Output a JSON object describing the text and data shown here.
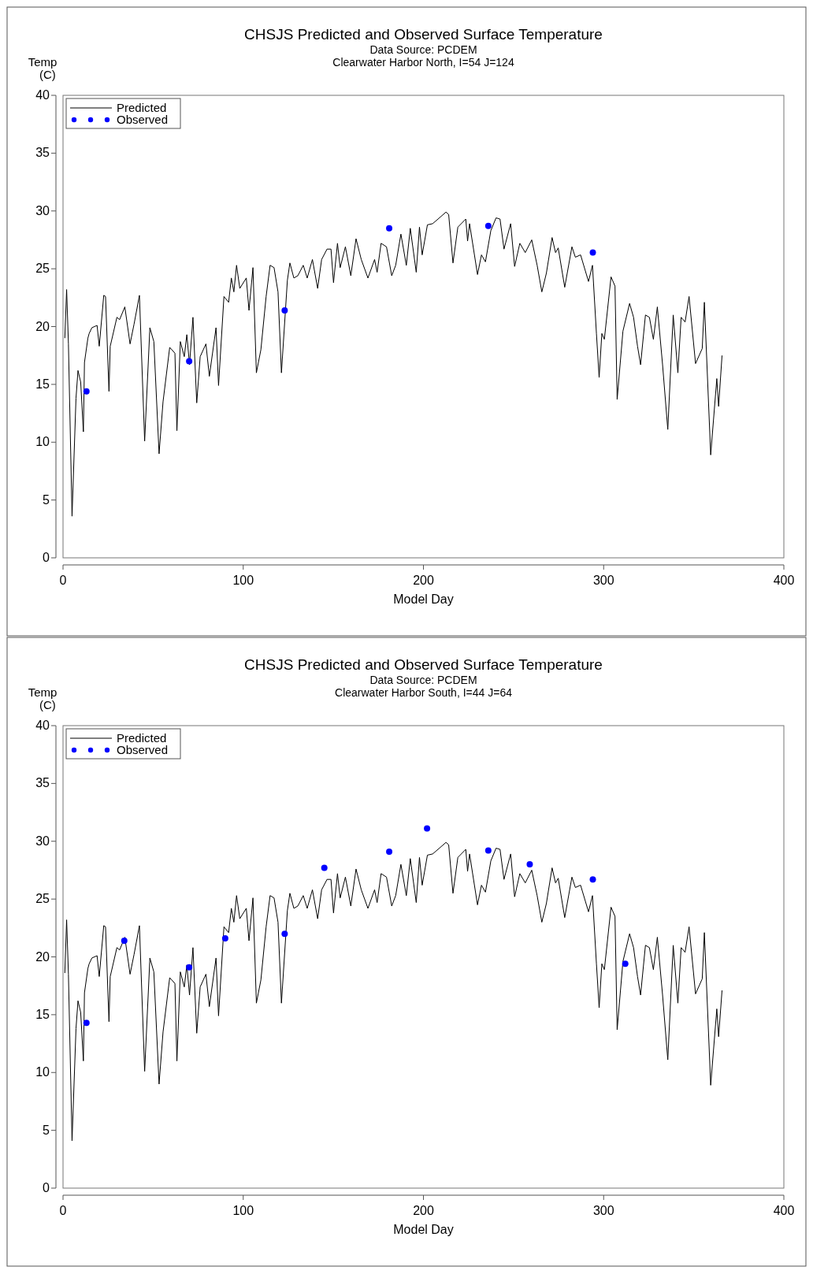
{
  "chart_data": [
    {
      "type": "line",
      "title": "CHSJS Predicted and Observed Surface Temperature",
      "subtitle": "Data Source: PCDEM\nClearwater Harbor North, I=54 J=124",
      "xlabel": "Model Day",
      "ylabel": "Temp\n(C)",
      "xlim": [
        0,
        400
      ],
      "ylim": [
        0,
        40
      ],
      "xticks": [
        0,
        100,
        200,
        300,
        400
      ],
      "yticks": [
        0,
        5,
        10,
        15,
        20,
        25,
        30,
        35,
        40
      ],
      "grid": false,
      "legend": "top left",
      "series": [
        {
          "name": "Predicted",
          "color": "#000000",
          "marker": "none",
          "x": [
            1,
            2,
            3,
            5,
            7.2,
            8.3,
            9.8,
            11.3,
            11.9,
            13.8,
            14.5,
            16,
            18.9,
            20.1,
            22.6,
            23.6,
            25.5,
            26.2,
            29.9,
            31.4,
            34.3,
            37.2,
            39.4,
            42.4,
            45.3,
            48.2,
            50.4,
            53.3,
            55.5,
            59.2,
            62.1,
            63.2,
            65.1,
            67.3,
            68.7,
            70.2,
            72.1,
            74.2,
            76.1,
            79.3,
            81.2,
            84.9,
            86.3,
            89.3,
            91.9,
            93.4,
            94.8,
            96.3,
            98.1,
            101.7,
            103.2,
            105.4,
            107.3,
            109.8,
            112.7,
            114.9,
            117.1,
            119.3,
            121.2,
            124.5,
            125.9,
            128.1,
            130.3,
            133.3,
            135.5,
            138.4,
            141.3,
            143.5,
            146.5,
            148.7,
            150.1,
            152.3,
            153.8,
            156.7,
            159.7,
            162.6,
            165.5,
            169.2,
            172.9,
            174.3,
            176.5,
            179.5,
            182.4,
            184.6,
            187.5,
            190.5,
            192.7,
            196,
            197.8,
            199.3,
            202.2,
            205.1,
            208.1,
            212.5,
            214,
            216.4,
            219.1,
            223.5,
            224.5,
            225.6,
            230,
            232.2,
            234.4,
            237.4,
            240.3,
            242.5,
            244.7,
            248.4,
            250.6,
            253.5,
            256.5,
            260.1,
            263.1,
            265.7,
            268.2,
            271.4,
            273.3,
            274.8,
            278.4,
            282.4,
            284.3,
            287.2,
            291.6,
            293.8,
            296,
            297.5,
            299,
            300.4,
            304.1,
            306.3,
            307.5,
            310.7,
            314.4,
            316.6,
            318.8,
            320.5,
            323.2,
            325.4,
            327.6,
            329.8,
            332.7,
            335.6,
            338.6,
            341.2,
            343,
            345.2,
            347.4,
            351,
            354.7,
            355.9,
            359.4,
            362.8,
            363.8,
            365.7
          ],
          "values": [
            19.0,
            23.2,
            18.5,
            3.6,
            13.8,
            16.2,
            15.2,
            10.9,
            16.9,
            19.0,
            19.4,
            19.9,
            20.1,
            18.3,
            22.7,
            22.6,
            14.4,
            18.3,
            20.8,
            20.6,
            21.7,
            18.5,
            20.2,
            22.7,
            10.1,
            19.9,
            18.7,
            9.0,
            13.5,
            18.2,
            17.7,
            11.0,
            18.7,
            17.4,
            19.3,
            16.7,
            20.8,
            13.4,
            17.4,
            18.5,
            15.7,
            19.9,
            14.9,
            22.6,
            22.1,
            24.2,
            23.0,
            25.3,
            23.3,
            24.2,
            21.4,
            25.1,
            16.0,
            18.0,
            22.6,
            25.3,
            25.1,
            23.0,
            16.0,
            24.0,
            25.5,
            24.2,
            24.4,
            25.3,
            24.2,
            25.8,
            23.3,
            25.8,
            26.7,
            26.7,
            23.8,
            27.2,
            25.1,
            26.9,
            24.4,
            27.6,
            25.8,
            24.2,
            25.8,
            24.7,
            27.2,
            26.9,
            24.4,
            25.3,
            28.0,
            25.3,
            28.5,
            24.7,
            28.6,
            26.2,
            28.8,
            28.9,
            29.3,
            29.9,
            29.7,
            25.5,
            28.6,
            29.3,
            27.4,
            28.9,
            24.5,
            26.2,
            25.6,
            28.3,
            29.4,
            29.3,
            26.7,
            28.9,
            25.2,
            27.2,
            26.4,
            27.5,
            25.3,
            23.0,
            24.6,
            27.7,
            26.4,
            26.8,
            23.4,
            26.9,
            26.0,
            26.2,
            23.9,
            25.3,
            19.4,
            15.6,
            19.4,
            18.9,
            24.3,
            23.5,
            13.7,
            19.6,
            22.0,
            20.8,
            18.3,
            16.7,
            21.0,
            20.8,
            18.9,
            21.7,
            16.7,
            11.1,
            21.0,
            16.0,
            20.8,
            20.4,
            22.6,
            16.8,
            18.1,
            22.1,
            8.9,
            15.5,
            13.1,
            17.5
          ]
        },
        {
          "name": "Observed",
          "type": "scatter",
          "color": "#0000ff",
          "marker": "circle",
          "x": [
            13,
            70,
            123,
            181,
            236,
            294
          ],
          "values": [
            14.4,
            17.0,
            21.4,
            28.5,
            28.7,
            26.4
          ]
        }
      ]
    },
    {
      "type": "line",
      "title": "CHSJS Predicted and Observed Surface Temperature",
      "subtitle": "Data Source: PCDEM\nClearwater Harbor South, I=44 J=64",
      "xlabel": "Model Day",
      "ylabel": "Temp\n(C)",
      "xlim": [
        0,
        400
      ],
      "ylim": [
        0,
        40
      ],
      "xticks": [
        0,
        100,
        200,
        300,
        400
      ],
      "yticks": [
        0,
        5,
        10,
        15,
        20,
        25,
        30,
        35,
        40
      ],
      "grid": false,
      "legend": "top left",
      "series": [
        {
          "name": "Predicted",
          "color": "#000000",
          "marker": "none",
          "x": [
            1,
            2,
            3,
            5,
            7.2,
            8.3,
            9.8,
            11.3,
            11.9,
            13.8,
            14.5,
            16,
            18.9,
            20.1,
            22.6,
            23.6,
            25.5,
            26.2,
            29.9,
            31.4,
            34.3,
            37.2,
            39.4,
            42.4,
            45.3,
            48.2,
            50.4,
            53.3,
            55.5,
            59.2,
            62.1,
            63.2,
            65.1,
            67.3,
            68.7,
            70.2,
            72.1,
            74.2,
            76.1,
            79.3,
            81.2,
            84.9,
            86.3,
            89.3,
            91.9,
            93.4,
            94.8,
            96.3,
            98.1,
            101.7,
            103.2,
            105.4,
            107.3,
            109.8,
            112.7,
            114.9,
            117.1,
            119.3,
            121.2,
            124.5,
            125.9,
            128.1,
            130.3,
            133.3,
            135.5,
            138.4,
            141.3,
            143.5,
            146.5,
            148.7,
            150.1,
            152.3,
            153.8,
            156.7,
            159.7,
            162.6,
            165.5,
            169.2,
            172.9,
            174.3,
            176.5,
            179.5,
            182.4,
            184.6,
            187.5,
            190.5,
            192.7,
            196,
            197.8,
            199.3,
            202.2,
            205.1,
            208.1,
            212.5,
            214,
            216.4,
            219.1,
            223.5,
            224.5,
            225.6,
            230,
            232.2,
            234.4,
            237.4,
            240.3,
            242.5,
            244.7,
            248.4,
            250.6,
            253.5,
            256.5,
            260.1,
            263.1,
            265.7,
            268.2,
            271.4,
            273.3,
            274.8,
            278.4,
            282.4,
            284.3,
            287.2,
            291.6,
            293.8,
            296,
            297.5,
            299,
            300.4,
            304.1,
            306.3,
            307.5,
            310.7,
            314.4,
            316.6,
            318.8,
            320.5,
            323.2,
            325.4,
            327.6,
            329.8,
            332.7,
            335.6,
            338.6,
            341.2,
            343,
            345.2,
            347.4,
            351,
            354.7,
            355.9,
            359.4,
            362.8,
            363.8,
            365.7
          ],
          "values": [
            18.6,
            23.2,
            18.5,
            4.1,
            13.8,
            16.2,
            15.2,
            11.0,
            16.9,
            19.0,
            19.4,
            19.9,
            20.1,
            18.3,
            22.7,
            22.6,
            14.4,
            18.3,
            20.8,
            20.6,
            21.7,
            18.5,
            20.2,
            22.7,
            10.1,
            19.9,
            18.7,
            9.0,
            13.5,
            18.2,
            17.7,
            11.0,
            18.7,
            17.4,
            19.3,
            16.7,
            20.8,
            13.4,
            17.4,
            18.5,
            15.7,
            19.9,
            14.9,
            22.6,
            22.1,
            24.2,
            23.0,
            25.3,
            23.3,
            24.2,
            21.4,
            25.1,
            16.0,
            18.0,
            22.6,
            25.3,
            25.1,
            23.0,
            16.0,
            24.0,
            25.5,
            24.2,
            24.4,
            25.3,
            24.2,
            25.8,
            23.3,
            25.8,
            26.7,
            26.7,
            23.8,
            27.2,
            25.1,
            26.9,
            24.4,
            27.6,
            25.8,
            24.2,
            25.8,
            24.7,
            27.2,
            26.9,
            24.4,
            25.3,
            28.0,
            25.3,
            28.5,
            24.7,
            28.6,
            26.2,
            28.8,
            28.9,
            29.3,
            29.9,
            29.7,
            25.5,
            28.6,
            29.3,
            27.4,
            28.9,
            24.5,
            26.2,
            25.6,
            28.3,
            29.4,
            29.3,
            26.7,
            28.9,
            25.2,
            27.2,
            26.4,
            27.5,
            25.3,
            23.0,
            24.6,
            27.7,
            26.4,
            26.8,
            23.4,
            26.9,
            26.0,
            26.2,
            23.9,
            25.3,
            19.4,
            15.6,
            19.4,
            18.9,
            24.3,
            23.5,
            13.7,
            19.6,
            22.0,
            20.8,
            18.3,
            16.7,
            21.0,
            20.8,
            18.9,
            21.7,
            16.7,
            11.1,
            21.0,
            16.0,
            20.8,
            20.4,
            22.6,
            16.8,
            18.1,
            22.1,
            8.9,
            15.5,
            13.1,
            17.1
          ]
        },
        {
          "name": "Observed",
          "type": "scatter",
          "color": "#0000ff",
          "marker": "circle",
          "x": [
            13,
            34,
            70,
            90,
            123,
            145,
            181,
            202,
            236,
            259,
            294,
            312
          ],
          "values": [
            14.3,
            21.4,
            19.1,
            21.6,
            22.0,
            27.7,
            29.1,
            31.1,
            29.2,
            28.0,
            26.7,
            19.4
          ]
        }
      ]
    }
  ]
}
